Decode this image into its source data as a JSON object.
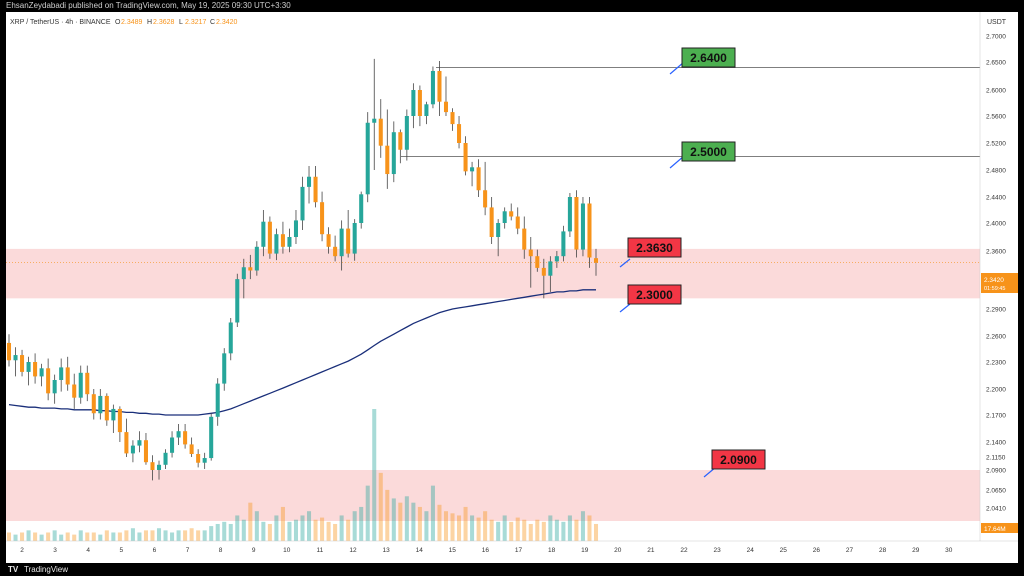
{
  "header": {
    "publisher_line": "EhsanZeydabadi published on TradingView.com, May 19, 2025 09:30 UTC+3:30"
  },
  "legend": {
    "symbol": "XRP / TetherUS · 4h · BINANCE",
    "open_label": "O",
    "open": "2.3489",
    "high_label": "H",
    "high": "2.3628",
    "low_label": "L",
    "low": "2.3217",
    "close_label": "C",
    "close": "2.3420"
  },
  "price_axis": {
    "currency": "USDT",
    "ticks": [
      "2.7000",
      "2.6500",
      "2.6000",
      "2.5600",
      "2.5200",
      "2.4800",
      "2.4400",
      "2.4000",
      "2.3600",
      "2.3200",
      "2.2900",
      "2.2600",
      "2.2300",
      "2.2000",
      "2.1700",
      "2.1400",
      "2.1150",
      "2.0900",
      "2.0650",
      "2.0410"
    ],
    "current_price": "2.3420",
    "countdown": "01:59:45",
    "volume_label": "17.64M"
  },
  "time_axis": {
    "ticks": [
      "2",
      "3",
      "4",
      "5",
      "6",
      "7",
      "8",
      "9",
      "10",
      "11",
      "12",
      "13",
      "14",
      "15",
      "16",
      "17",
      "18",
      "19",
      "20",
      "21",
      "22",
      "23",
      "24",
      "25",
      "26",
      "27",
      "28",
      "29",
      "30"
    ]
  },
  "annotations": {
    "label_2640": "2.6400",
    "label_2500": "2.5000",
    "label_2363": "2.3630",
    "label_2300": "2.3000",
    "label_2090": "2.0900"
  },
  "footer": {
    "logo_glyph": "TV",
    "brand": "TradingView"
  },
  "colors": {
    "up": "#26a69a",
    "down": "#f7931a",
    "ma": "#1a2f7a",
    "zone": "#f9caca",
    "green_label": "#4caf50",
    "red_label": "#f23645"
  },
  "chart_data": {
    "type": "candlestick",
    "timeframe": "4h",
    "pair": "XRP/USDT",
    "ohlc": [
      [
        2.252,
        2.262,
        2.225,
        2.232
      ],
      [
        2.232,
        2.247,
        2.214,
        2.238
      ],
      [
        2.238,
        2.244,
        2.214,
        2.219
      ],
      [
        2.219,
        2.236,
        2.204,
        2.23
      ],
      [
        2.23,
        2.24,
        2.206,
        2.214
      ],
      [
        2.214,
        2.228,
        2.203,
        2.223
      ],
      [
        2.223,
        2.234,
        2.187,
        2.195
      ],
      [
        2.195,
        2.216,
        2.183,
        2.21
      ],
      [
        2.21,
        2.234,
        2.197,
        2.224
      ],
      [
        2.224,
        2.236,
        2.198,
        2.205
      ],
      [
        2.205,
        2.217,
        2.177,
        2.19
      ],
      [
        2.19,
        2.226,
        2.183,
        2.218
      ],
      [
        2.218,
        2.226,
        2.186,
        2.194
      ],
      [
        2.194,
        2.2,
        2.165,
        2.172
      ],
      [
        2.172,
        2.2,
        2.165,
        2.192
      ],
      [
        2.192,
        2.195,
        2.158,
        2.164
      ],
      [
        2.164,
        2.182,
        2.15,
        2.177
      ],
      [
        2.177,
        2.18,
        2.14,
        2.151
      ],
      [
        2.151,
        2.166,
        2.115,
        2.121
      ],
      [
        2.121,
        2.142,
        2.105,
        2.134
      ],
      [
        2.134,
        2.152,
        2.123,
        2.142
      ],
      [
        2.142,
        2.15,
        2.1,
        2.105
      ],
      [
        2.105,
        2.118,
        2.077,
        2.09
      ],
      [
        2.09,
        2.108,
        2.078,
        2.1
      ],
      [
        2.1,
        2.128,
        2.092,
        2.122
      ],
      [
        2.122,
        2.152,
        2.114,
        2.145
      ],
      [
        2.145,
        2.16,
        2.135,
        2.152
      ],
      [
        2.152,
        2.16,
        2.129,
        2.136
      ],
      [
        2.136,
        2.145,
        2.115,
        2.12
      ],
      [
        2.12,
        2.128,
        2.095,
        2.104
      ],
      [
        2.104,
        2.122,
        2.092,
        2.113
      ],
      [
        2.113,
        2.172,
        2.108,
        2.168
      ],
      [
        2.168,
        2.212,
        2.158,
        2.206
      ],
      [
        2.206,
        2.246,
        2.198,
        2.24
      ],
      [
        2.24,
        2.28,
        2.232,
        2.275
      ],
      [
        2.275,
        2.325,
        2.27,
        2.318
      ],
      [
        2.318,
        2.348,
        2.3,
        2.335
      ],
      [
        2.335,
        2.354,
        2.318,
        2.33
      ],
      [
        2.33,
        2.374,
        2.322,
        2.366
      ],
      [
        2.366,
        2.42,
        2.352,
        2.402
      ],
      [
        2.402,
        2.41,
        2.348,
        2.356
      ],
      [
        2.356,
        2.392,
        2.346,
        2.384
      ],
      [
        2.384,
        2.402,
        2.356,
        2.366
      ],
      [
        2.366,
        2.392,
        2.358,
        2.38
      ],
      [
        2.38,
        2.42,
        2.37,
        2.404
      ],
      [
        2.404,
        2.47,
        2.39,
        2.455
      ],
      [
        2.455,
        2.486,
        2.43,
        2.47
      ],
      [
        2.47,
        2.486,
        2.424,
        2.432
      ],
      [
        2.432,
        2.448,
        2.374,
        2.384
      ],
      [
        2.384,
        2.394,
        2.356,
        2.366
      ],
      [
        2.366,
        2.382,
        2.344,
        2.352
      ],
      [
        2.352,
        2.404,
        2.33,
        2.392
      ],
      [
        2.392,
        2.42,
        2.35,
        2.356
      ],
      [
        2.356,
        2.406,
        2.345,
        2.4
      ],
      [
        2.4,
        2.448,
        2.392,
        2.444
      ],
      [
        2.444,
        2.566,
        2.432,
        2.55
      ],
      [
        2.55,
        2.656,
        2.48,
        2.556
      ],
      [
        2.556,
        2.586,
        2.498,
        2.516
      ],
      [
        2.516,
        2.57,
        2.452,
        2.474
      ],
      [
        2.474,
        2.552,
        2.462,
        2.536
      ],
      [
        2.536,
        2.54,
        2.49,
        2.51
      ],
      [
        2.51,
        2.57,
        2.494,
        2.56
      ],
      [
        2.56,
        2.612,
        2.542,
        2.6
      ],
      [
        2.6,
        2.608,
        2.545,
        2.56
      ],
      [
        2.56,
        2.582,
        2.548,
        2.578
      ],
      [
        2.578,
        2.642,
        2.572,
        2.634
      ],
      [
        2.634,
        2.652,
        2.56,
        2.582
      ],
      [
        2.582,
        2.624,
        2.56,
        2.566
      ],
      [
        2.566,
        2.572,
        2.538,
        2.548
      ],
      [
        2.548,
        2.56,
        2.512,
        2.52
      ],
      [
        2.52,
        2.53,
        2.472,
        2.478
      ],
      [
        2.478,
        2.492,
        2.456,
        2.484
      ],
      [
        2.484,
        2.496,
        2.44,
        2.45
      ],
      [
        2.45,
        2.492,
        2.412,
        2.424
      ],
      [
        2.424,
        2.44,
        2.37,
        2.38
      ],
      [
        2.38,
        2.406,
        2.352,
        2.4
      ],
      [
        2.4,
        2.424,
        2.392,
        2.418
      ],
      [
        2.418,
        2.43,
        2.404,
        2.41
      ],
      [
        2.41,
        2.424,
        2.384,
        2.392
      ],
      [
        2.392,
        2.41,
        2.348,
        2.362
      ],
      [
        2.362,
        2.38,
        2.31,
        2.352
      ],
      [
        2.352,
        2.362,
        2.328,
        2.334
      ],
      [
        2.334,
        2.348,
        2.3,
        2.322
      ],
      [
        2.322,
        2.352,
        2.306,
        2.344
      ],
      [
        2.344,
        2.36,
        2.334,
        2.352
      ],
      [
        2.352,
        2.396,
        2.344,
        2.388
      ],
      [
        2.388,
        2.446,
        2.38,
        2.44
      ],
      [
        2.44,
        2.45,
        2.35,
        2.362
      ],
      [
        2.362,
        2.44,
        2.352,
        2.43
      ],
      [
        2.43,
        2.44,
        2.334,
        2.35
      ],
      [
        2.349,
        2.363,
        2.322,
        2.342
      ]
    ],
    "volume": [
      4,
      3,
      4,
      5,
      4,
      3,
      4,
      5,
      3,
      4,
      3,
      5,
      4,
      4,
      3,
      5,
      4,
      4,
      5,
      6,
      4,
      5,
      5,
      6,
      5,
      4,
      5,
      5,
      6,
      5,
      5,
      7,
      8,
      9,
      8,
      12,
      10,
      18,
      14,
      9,
      8,
      12,
      16,
      9,
      10,
      12,
      14,
      10,
      11,
      9,
      8,
      12,
      10,
      14,
      16,
      26,
      62,
      32,
      24,
      20,
      18,
      21,
      18,
      16,
      14,
      26,
      17,
      14,
      13,
      12,
      16,
      12,
      11,
      14,
      10,
      9,
      12,
      9,
      11,
      10,
      8,
      10,
      9,
      12,
      10,
      9,
      12,
      10,
      14,
      12,
      8
    ],
    "moving_average": [
      2.182,
      2.181,
      2.18,
      2.179,
      2.179,
      2.178,
      2.178,
      2.178,
      2.177,
      2.177,
      2.176,
      2.176,
      2.176,
      2.176,
      2.175,
      2.175,
      2.174,
      2.174,
      2.173,
      2.173,
      2.172,
      2.172,
      2.171,
      2.171,
      2.17,
      2.17,
      2.17,
      2.17,
      2.17,
      2.17,
      2.171,
      2.172,
      2.173,
      2.175,
      2.177,
      2.18,
      2.183,
      2.186,
      2.189,
      2.192,
      2.195,
      2.198,
      2.201,
      2.204,
      2.207,
      2.21,
      2.213,
      2.216,
      2.219,
      2.222,
      2.225,
      2.228,
      2.231,
      2.235,
      2.239,
      2.244,
      2.249,
      2.254,
      2.258,
      2.262,
      2.266,
      2.27,
      2.274,
      2.277,
      2.28,
      2.283,
      2.286,
      2.288,
      2.29,
      2.291,
      2.292,
      2.293,
      2.294,
      2.295,
      2.296,
      2.297,
      2.298,
      2.299,
      2.3,
      2.301,
      2.302,
      2.303,
      2.304,
      2.305,
      2.306,
      2.306,
      2.307,
      2.307,
      2.308,
      2.308,
      2.308
    ],
    "y_range": [
      2.04,
      2.7
    ],
    "levels": [
      2.64,
      2.5,
      2.363,
      2.3,
      2.09
    ],
    "zones": [
      [
        2.3,
        2.363
      ],
      [
        2.04,
        2.09
      ]
    ]
  }
}
